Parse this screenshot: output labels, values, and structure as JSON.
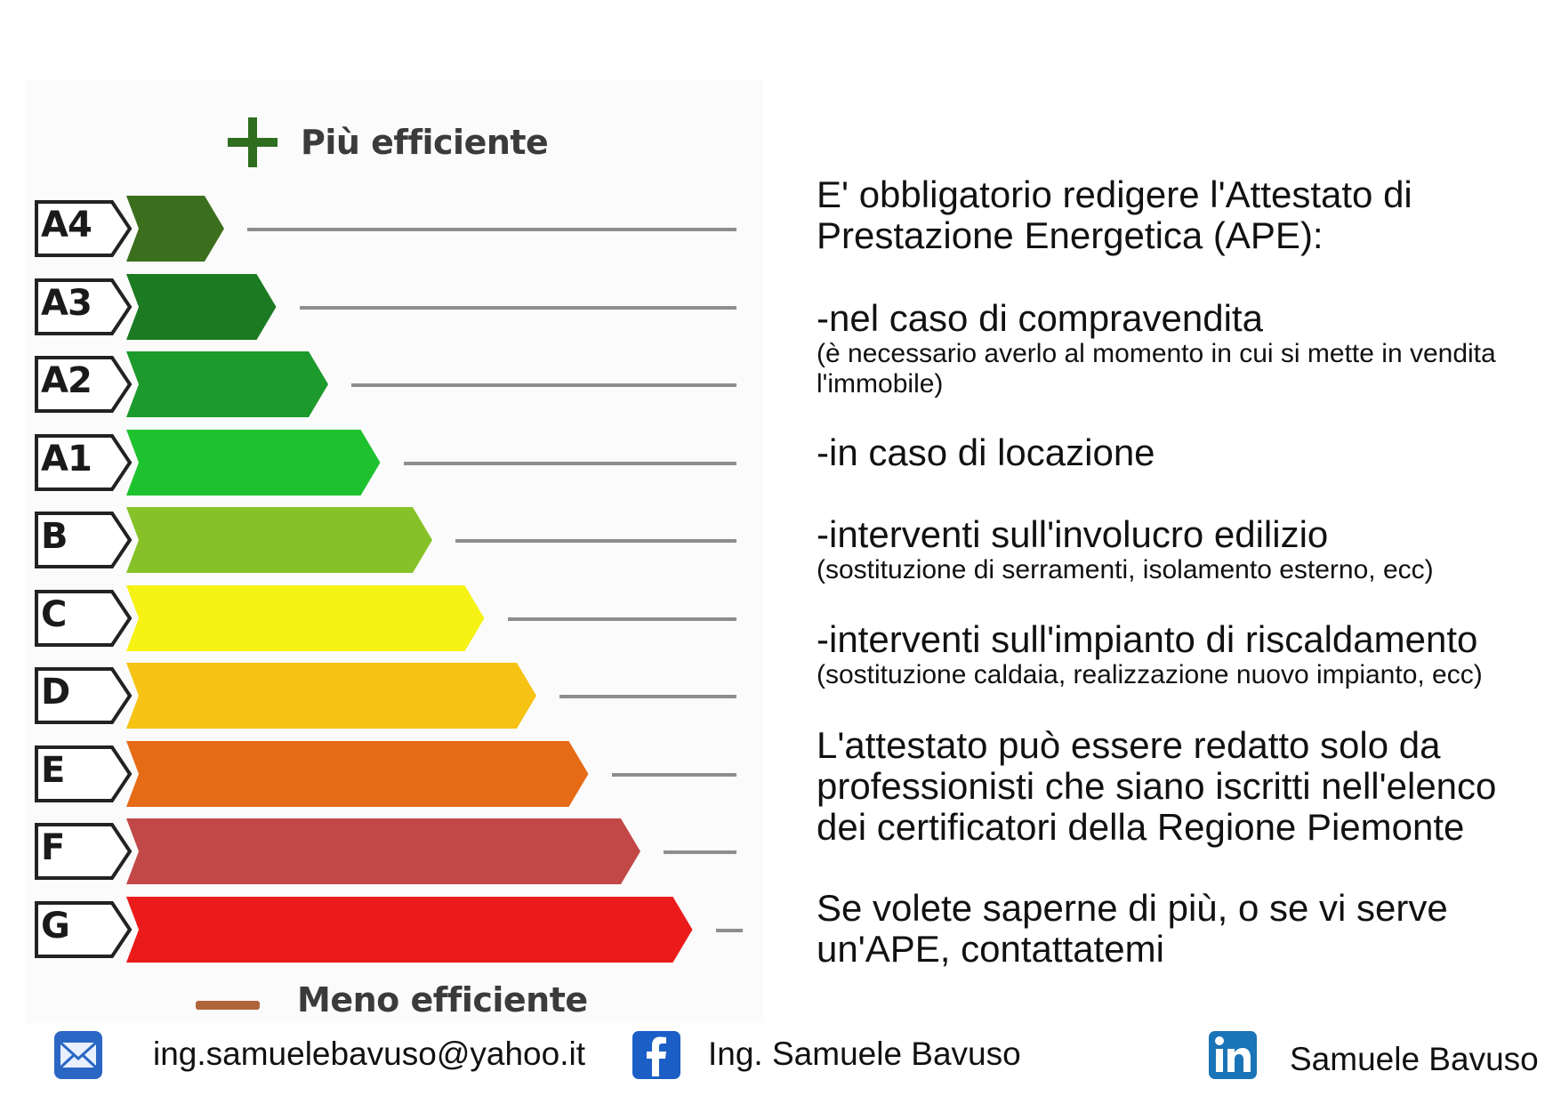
{
  "scale": {
    "top_label": "Più efficiente",
    "bottom_label": "Meno efficiente",
    "classes": [
      {
        "label": "A4",
        "color": "#3b6f1e"
      },
      {
        "label": "A3",
        "color": "#1c7a23"
      },
      {
        "label": "A2",
        "color": "#1c9a2b"
      },
      {
        "label": "A1",
        "color": "#1ec22f"
      },
      {
        "label": "B",
        "color": "#86c227"
      },
      {
        "label": "C",
        "color": "#f5f214"
      },
      {
        "label": "D",
        "color": "#f6c214"
      },
      {
        "label": "E",
        "color": "#e66b17"
      },
      {
        "label": "F",
        "color": "#c24848"
      },
      {
        "label": "G",
        "color": "#ec1b1b"
      }
    ]
  },
  "text": {
    "intro": "E' obbligatorio redigere l'Attestato di Prestazione Energetica (APE):",
    "item1": "-nel caso di compravendita",
    "item1_note": "(è necessario averlo al momento in cui si mette in vendita l'immobile)",
    "item2": "-in caso di locazione",
    "item3": "-interventi sull'involucro edilizio",
    "item3_note": "(sostituzione di serramenti, isolamento esterno, ecc)",
    "item4": "-interventi sull'impianto di riscaldamento",
    "item4_note": "(sostituzione caldaia, realizzazione nuovo impianto, ecc)",
    "professionals": "L'attestato può essere redatto solo da professionisti che siano iscritti nell'elenco dei certificatori della Regione Piemonte",
    "contact": "Se volete saperne di più, o se vi serve un'APE, contattatemi"
  },
  "footer": {
    "email": "ing.samuelebavuso@yahoo.it",
    "facebook": "Ing. Samuele Bavuso",
    "linkedin": "Samuele Bavuso",
    "icons": [
      "mail-icon",
      "facebook-icon",
      "linkedin-icon"
    ],
    "brand_colors": {
      "facebook": "#1b5fc6",
      "linkedin": "#1a74b8",
      "mail": "#2a66c4"
    }
  }
}
